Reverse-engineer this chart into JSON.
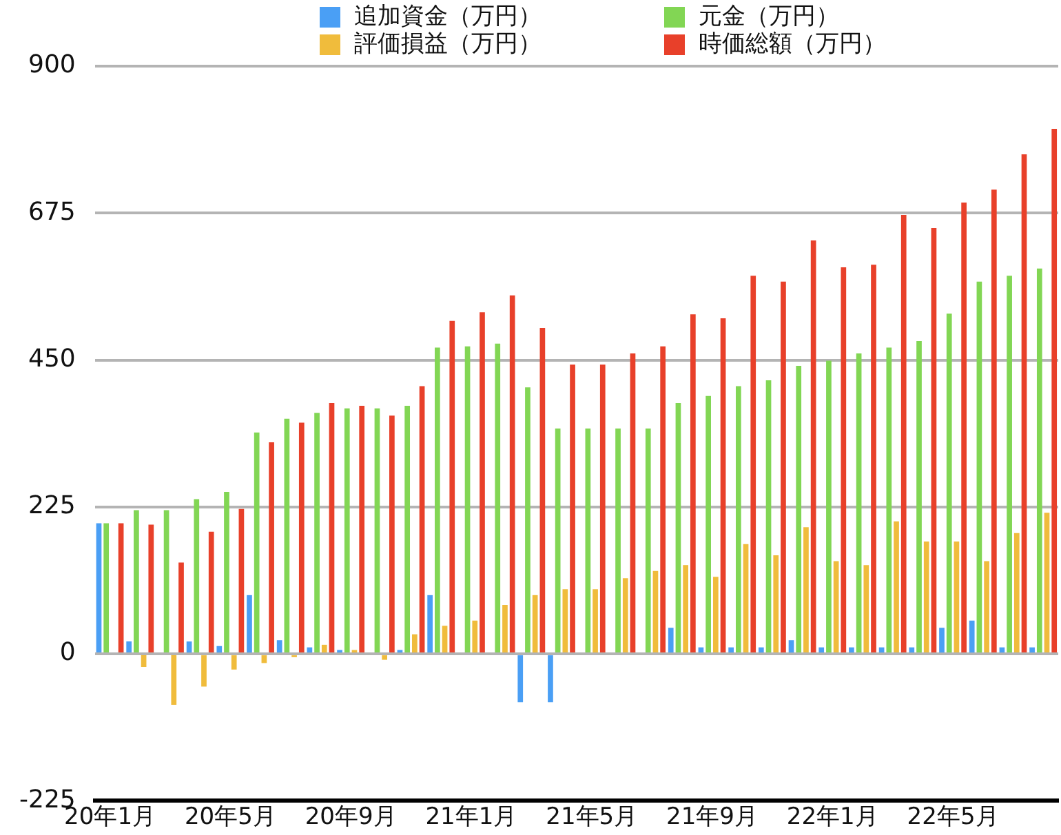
{
  "chart_data": {
    "type": "bar",
    "categories": [
      "20年1月",
      null,
      null,
      null,
      "20年5月",
      null,
      null,
      null,
      "20年9月",
      null,
      null,
      null,
      "21年1月",
      null,
      null,
      null,
      "21年5月",
      null,
      null,
      null,
      "21年9月",
      null,
      null,
      null,
      "22年1月",
      null,
      null,
      null,
      "22年5月",
      null,
      null,
      null
    ],
    "series": [
      {
        "name": "追加資金（万円）",
        "color": "#4a9ff5",
        "values": [
          200,
          19,
          0,
          19,
          12,
          90,
          21,
          10,
          6,
          0,
          6,
          90,
          0,
          0,
          -74,
          -74,
          0,
          0,
          0,
          40,
          10,
          10,
          10,
          21,
          10,
          10,
          10,
          10,
          40,
          51,
          10,
          10
        ]
      },
      {
        "name": "元金（万円）",
        "color": "#82d654",
        "values": [
          200,
          220,
          220,
          237,
          248,
          339,
          360,
          369,
          376,
          376,
          380,
          469,
          471,
          475,
          408,
          345,
          345,
          345,
          345,
          384,
          395,
          410,
          419,
          441,
          449,
          460,
          469,
          479,
          521,
          570,
          579,
          590
        ]
      },
      {
        "name": "評価損益（万円）",
        "color": "#f0bc3c",
        "values": [
          0,
          -20,
          -78,
          -50,
          -24,
          -14,
          -5,
          14,
          6,
          -9,
          30,
          43,
          51,
          75,
          90,
          99,
          99,
          116,
          127,
          136,
          118,
          168,
          151,
          194,
          142,
          136,
          203,
          172,
          172,
          142,
          185,
          216
        ]
      },
      {
        "name": "時価総額（万円）",
        "color": "#e8402a",
        "values": [
          200,
          198,
          140,
          187,
          222,
          324,
          354,
          384,
          380,
          365,
          410,
          510,
          523,
          549,
          499,
          443,
          443,
          460,
          471,
          520,
          514,
          579,
          570,
          633,
          592,
          596,
          672,
          652,
          691,
          711,
          765,
          804
        ]
      }
    ],
    "ylim": [
      -225,
      900
    ],
    "yticks": [
      -225,
      0,
      225,
      450,
      675,
      900
    ],
    "grid": "y",
    "legend": "top"
  }
}
